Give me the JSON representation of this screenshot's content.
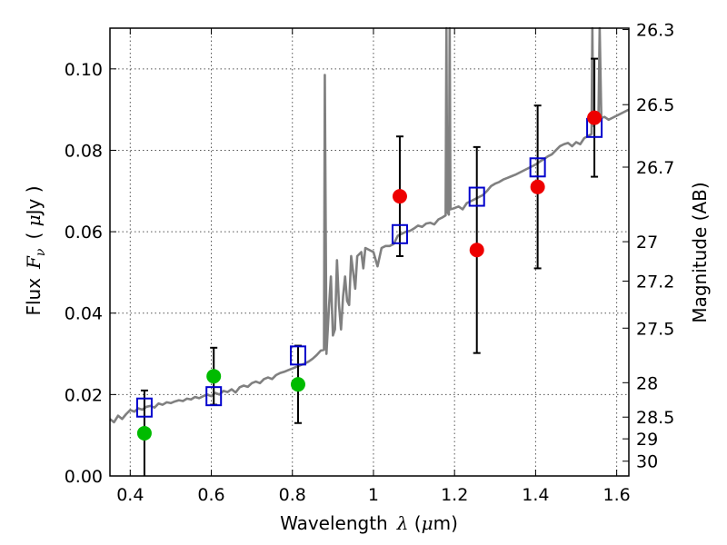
{
  "chart_data": {
    "type": "scatter",
    "title": "",
    "xlabel": {
      "prefix": "Wavelength",
      "symbol": "λ",
      "unit_open": " (",
      "unit_mu": "μ",
      "unit_rest": "m)"
    },
    "ylabel": {
      "prefix": "Flux",
      "symbol": "F",
      "sub": "ν",
      "unit_open": "( ",
      "unit_mu": "μ",
      "unit_rest": "Jy )"
    },
    "y2label": "Magnitude (AB)",
    "xlim": [
      0.35,
      1.63
    ],
    "ylim": [
      0.0,
      0.11
    ],
    "grid": true,
    "x_ticks": [
      {
        "value": 0.4,
        "label": "0.4"
      },
      {
        "value": 0.6,
        "label": "0.6"
      },
      {
        "value": 0.8,
        "label": "0.8"
      },
      {
        "value": 1.0,
        "label": "1"
      },
      {
        "value": 1.2,
        "label": "1.2"
      },
      {
        "value": 1.4,
        "label": "1.4"
      },
      {
        "value": 1.6,
        "label": "1.6"
      }
    ],
    "y_ticks": [
      {
        "value": 0.0,
        "label": "0.00"
      },
      {
        "value": 0.02,
        "label": "0.02"
      },
      {
        "value": 0.04,
        "label": "0.04"
      },
      {
        "value": 0.06,
        "label": "0.06"
      },
      {
        "value": 0.08,
        "label": "0.08"
      },
      {
        "value": 0.1,
        "label": "0.10"
      }
    ],
    "mag_ticks": [
      {
        "mag": 26.3,
        "label": "26.3"
      },
      {
        "mag": 26.5,
        "label": "26.5"
      },
      {
        "mag": 26.7,
        "label": "26.7"
      },
      {
        "mag": 27.0,
        "label": "27"
      },
      {
        "mag": 27.2,
        "label": "27.2"
      },
      {
        "mag": 27.5,
        "label": "27.5"
      },
      {
        "mag": 28.0,
        "label": "28"
      },
      {
        "mag": 28.5,
        "label": "28.5"
      },
      {
        "mag": 29.0,
        "label": "29"
      },
      {
        "mag": 30.0,
        "label": "30"
      }
    ],
    "colors": {
      "model": "#808080",
      "observed_optical": "#00bb00",
      "observed_nir": "#ee0000",
      "model_band": "#0000cc",
      "errorbar": "#000000",
      "grid": "#555555"
    },
    "observed_points": [
      {
        "x": 0.435,
        "y": 0.0105,
        "err_lo": 0.0105,
        "err_hi": 0.0105,
        "group": "optical"
      },
      {
        "x": 0.606,
        "y": 0.0245,
        "err_lo": 0.007,
        "err_hi": 0.007,
        "group": "optical"
      },
      {
        "x": 0.814,
        "y": 0.0225,
        "err_lo": 0.0095,
        "err_hi": 0.0095,
        "group": "optical"
      },
      {
        "x": 1.065,
        "y": 0.0687,
        "err_lo": 0.0147,
        "err_hi": 0.0147,
        "group": "nir"
      },
      {
        "x": 1.255,
        "y": 0.0555,
        "err_lo": 0.0253,
        "err_hi": 0.0253,
        "group": "nir"
      },
      {
        "x": 1.405,
        "y": 0.071,
        "err_lo": 0.02,
        "err_hi": 0.02,
        "group": "nir"
      },
      {
        "x": 1.545,
        "y": 0.088,
        "err_lo": 0.0145,
        "err_hi": 0.0145,
        "group": "nir"
      }
    ],
    "model_band_points": [
      {
        "x": 0.435,
        "y": 0.0168
      },
      {
        "x": 0.606,
        "y": 0.0196
      },
      {
        "x": 0.814,
        "y": 0.0296
      },
      {
        "x": 1.065,
        "y": 0.0594
      },
      {
        "x": 1.255,
        "y": 0.0686
      },
      {
        "x": 1.405,
        "y": 0.0758
      },
      {
        "x": 1.545,
        "y": 0.0855
      }
    ],
    "model_spectrum": [
      [
        0.35,
        0.014
      ],
      [
        0.36,
        0.0132
      ],
      [
        0.37,
        0.0148
      ],
      [
        0.38,
        0.014
      ],
      [
        0.39,
        0.0152
      ],
      [
        0.4,
        0.0162
      ],
      [
        0.41,
        0.0158
      ],
      [
        0.42,
        0.0166
      ],
      [
        0.43,
        0.0163
      ],
      [
        0.44,
        0.017
      ],
      [
        0.45,
        0.0172
      ],
      [
        0.46,
        0.0168
      ],
      [
        0.47,
        0.0178
      ],
      [
        0.48,
        0.0175
      ],
      [
        0.49,
        0.0181
      ],
      [
        0.5,
        0.0179
      ],
      [
        0.51,
        0.0183
      ],
      [
        0.52,
        0.0186
      ],
      [
        0.53,
        0.0184
      ],
      [
        0.54,
        0.019
      ],
      [
        0.55,
        0.0188
      ],
      [
        0.56,
        0.0194
      ],
      [
        0.57,
        0.0191
      ],
      [
        0.58,
        0.0196
      ],
      [
        0.59,
        0.02
      ],
      [
        0.6,
        0.0196
      ],
      [
        0.61,
        0.0204
      ],
      [
        0.62,
        0.02
      ],
      [
        0.63,
        0.0209
      ],
      [
        0.64,
        0.0206
      ],
      [
        0.65,
        0.0213
      ],
      [
        0.66,
        0.0205
      ],
      [
        0.67,
        0.0218
      ],
      [
        0.68,
        0.0222
      ],
      [
        0.69,
        0.0219
      ],
      [
        0.7,
        0.0228
      ],
      [
        0.71,
        0.0232
      ],
      [
        0.72,
        0.0228
      ],
      [
        0.73,
        0.0238
      ],
      [
        0.74,
        0.0242
      ],
      [
        0.75,
        0.0238
      ],
      [
        0.76,
        0.0248
      ],
      [
        0.77,
        0.0253
      ],
      [
        0.78,
        0.0256
      ],
      [
        0.79,
        0.026
      ],
      [
        0.8,
        0.0264
      ],
      [
        0.81,
        0.0268
      ],
      [
        0.82,
        0.0272
      ],
      [
        0.83,
        0.0276
      ],
      [
        0.84,
        0.0281
      ],
      [
        0.85,
        0.0288
      ],
      [
        0.86,
        0.0297
      ],
      [
        0.87,
        0.0308
      ],
      [
        0.878,
        0.031
      ],
      [
        0.88,
        0.0985
      ],
      [
        0.884,
        0.03
      ],
      [
        0.89,
        0.041
      ],
      [
        0.895,
        0.049
      ],
      [
        0.9,
        0.0345
      ],
      [
        0.905,
        0.036
      ],
      [
        0.91,
        0.053
      ],
      [
        0.915,
        0.042
      ],
      [
        0.92,
        0.036
      ],
      [
        0.925,
        0.044
      ],
      [
        0.93,
        0.049
      ],
      [
        0.935,
        0.043
      ],
      [
        0.94,
        0.042
      ],
      [
        0.945,
        0.054
      ],
      [
        0.95,
        0.05
      ],
      [
        0.955,
        0.046
      ],
      [
        0.96,
        0.054
      ],
      [
        0.97,
        0.055
      ],
      [
        0.975,
        0.051
      ],
      [
        0.98,
        0.056
      ],
      [
        0.99,
        0.0555
      ],
      [
        1.0,
        0.055
      ],
      [
        1.01,
        0.0515
      ],
      [
        1.02,
        0.056
      ],
      [
        1.03,
        0.0565
      ],
      [
        1.04,
        0.0565
      ],
      [
        1.05,
        0.057
      ],
      [
        1.06,
        0.059
      ],
      [
        1.07,
        0.0595
      ],
      [
        1.08,
        0.06
      ],
      [
        1.09,
        0.0602
      ],
      [
        1.1,
        0.0608
      ],
      [
        1.11,
        0.0615
      ],
      [
        1.12,
        0.0612
      ],
      [
        1.13,
        0.062
      ],
      [
        1.14,
        0.0622
      ],
      [
        1.15,
        0.0618
      ],
      [
        1.16,
        0.063
      ],
      [
        1.17,
        0.0635
      ],
      [
        1.178,
        0.064
      ],
      [
        1.18,
        0.11
      ],
      [
        1.182,
        0.065
      ],
      [
        1.186,
        0.0642
      ],
      [
        1.188,
        0.11
      ],
      [
        1.19,
        0.0655
      ],
      [
        1.2,
        0.0658
      ],
      [
        1.21,
        0.0662
      ],
      [
        1.22,
        0.0655
      ],
      [
        1.23,
        0.067
      ],
      [
        1.24,
        0.0675
      ],
      [
        1.25,
        0.068
      ],
      [
        1.26,
        0.0685
      ],
      [
        1.27,
        0.069
      ],
      [
        1.28,
        0.07
      ],
      [
        1.29,
        0.0712
      ],
      [
        1.3,
        0.0718
      ],
      [
        1.31,
        0.0722
      ],
      [
        1.32,
        0.0728
      ],
      [
        1.33,
        0.0732
      ],
      [
        1.34,
        0.0736
      ],
      [
        1.35,
        0.074
      ],
      [
        1.36,
        0.0745
      ],
      [
        1.37,
        0.075
      ],
      [
        1.38,
        0.0755
      ],
      [
        1.39,
        0.076
      ],
      [
        1.4,
        0.0765
      ],
      [
        1.41,
        0.0772
      ],
      [
        1.42,
        0.0778
      ],
      [
        1.43,
        0.0785
      ],
      [
        1.44,
        0.079
      ],
      [
        1.45,
        0.08
      ],
      [
        1.46,
        0.081
      ],
      [
        1.47,
        0.0815
      ],
      [
        1.48,
        0.0818
      ],
      [
        1.49,
        0.081
      ],
      [
        1.5,
        0.082
      ],
      [
        1.51,
        0.0815
      ],
      [
        1.52,
        0.083
      ],
      [
        1.53,
        0.0835
      ],
      [
        1.538,
        0.084
      ],
      [
        1.54,
        0.11
      ],
      [
        1.542,
        0.086
      ],
      [
        1.55,
        0.087
      ],
      [
        1.555,
        0.0875
      ],
      [
        1.558,
        0.11
      ],
      [
        1.562,
        0.088
      ],
      [
        1.57,
        0.0882
      ],
      [
        1.58,
        0.0875
      ],
      [
        1.59,
        0.088
      ],
      [
        1.6,
        0.0885
      ],
      [
        1.61,
        0.089
      ],
      [
        1.62,
        0.0895
      ],
      [
        1.63,
        0.09
      ]
    ]
  }
}
